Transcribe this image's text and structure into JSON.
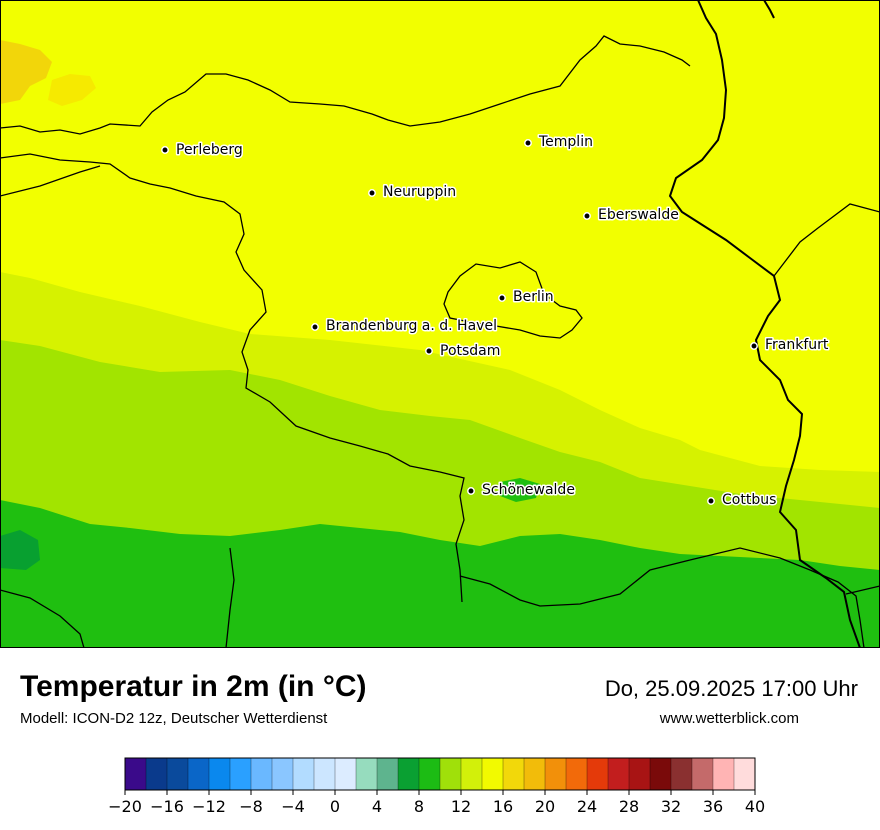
{
  "title": "Temperatur in 2m (in °C)",
  "model": "Modell: ICON-D2 12z, Deutscher Wetterdienst",
  "datetime": "Do, 25.09.2025 17:00 Uhr",
  "website": "www.wetterblick.com",
  "cities": [
    {
      "name": "Perleberg"
    },
    {
      "name": "Templin"
    },
    {
      "name": "Neuruppin"
    },
    {
      "name": "Eberswalde"
    },
    {
      "name": "Berlin"
    },
    {
      "name": "Brandenburg a. d. Havel"
    },
    {
      "name": "Potsdam"
    },
    {
      "name": "Frankfurt"
    },
    {
      "name": "Schönewalde"
    },
    {
      "name": "Cottbus"
    }
  ],
  "colorbar": {
    "tick_labels": [
      "−20",
      "−16",
      "−12",
      "−8",
      "−4",
      "0",
      "4",
      "8",
      "12",
      "16",
      "20",
      "24",
      "28",
      "32",
      "36",
      "40"
    ],
    "colors": [
      "#3a0a8a",
      "#0a3a8c",
      "#0a4a9c",
      "#0a66c8",
      "#0a88ee",
      "#2aa0ff",
      "#6ab8ff",
      "#8ac6ff",
      "#b2dcff",
      "#cce6ff",
      "#dcecff",
      "#96dcbe",
      "#5eb48e",
      "#0aa032",
      "#1cbc14",
      "#a0e00a",
      "#d2f00a",
      "#f2fa00",
      "#f2d80a",
      "#f2bc0a",
      "#f2900a",
      "#f26a0a",
      "#e43a0a",
      "#c21e1e",
      "#a81414",
      "#7a0a0a",
      "#8a3030",
      "#c46a6a",
      "#ffb4b4",
      "#ffdcdc"
    ]
  }
}
